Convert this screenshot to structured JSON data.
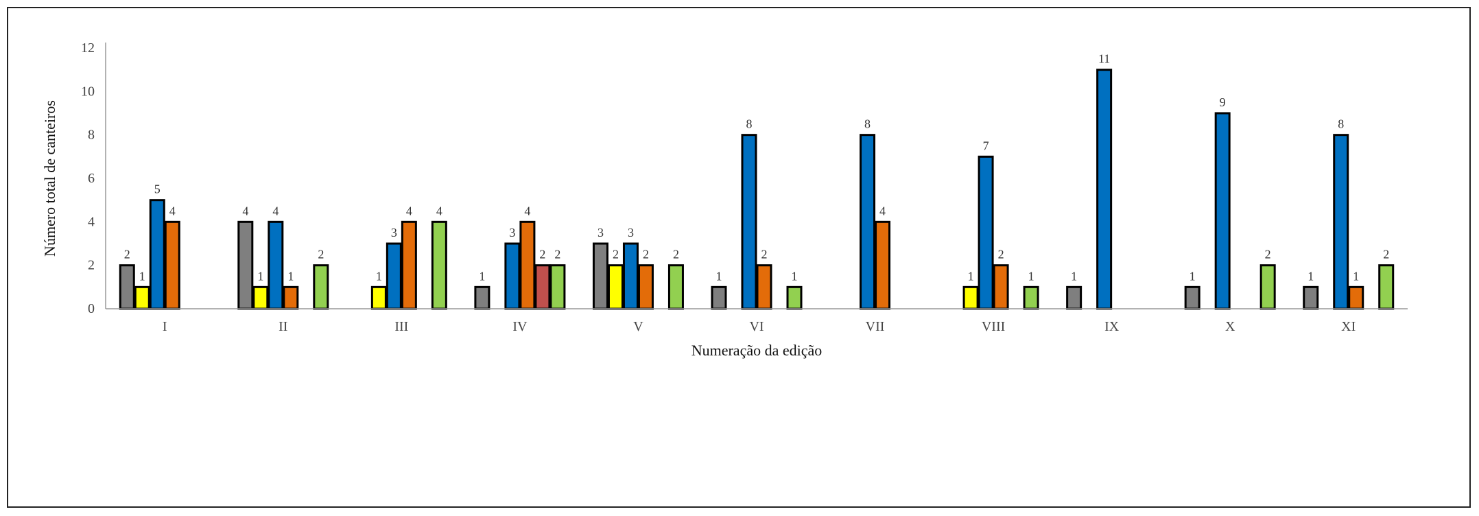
{
  "chart_data": {
    "type": "bar",
    "xlabel": "Numeração da edição",
    "ylabel": "Número total  de canteiros",
    "ylim": [
      0,
      12
    ],
    "yticks": [
      0,
      2,
      4,
      6,
      8,
      10,
      12
    ],
    "grid": false,
    "legend": "none",
    "categories": [
      "I",
      "II",
      "III",
      "IV",
      "V",
      "VI",
      "VII",
      "VIII",
      "IX",
      "X",
      "XI"
    ],
    "series": [
      {
        "color": "#7f7f7f",
        "values": [
          2,
          4,
          null,
          1,
          3,
          1,
          null,
          null,
          1,
          1,
          1
        ]
      },
      {
        "color": "#ffff00",
        "values": [
          1,
          1,
          1,
          null,
          2,
          null,
          null,
          1,
          null,
          null,
          null
        ]
      },
      {
        "color": "#0070c0",
        "values": [
          5,
          4,
          3,
          3,
          3,
          8,
          8,
          7,
          11,
          9,
          8
        ]
      },
      {
        "color": "#e36c09",
        "values": [
          4,
          1,
          4,
          4,
          2,
          2,
          4,
          2,
          null,
          null,
          1
        ]
      },
      {
        "color": "#c0504d",
        "values": [
          null,
          null,
          null,
          2,
          null,
          null,
          null,
          null,
          null,
          null,
          null
        ]
      },
      {
        "color": "#92d050",
        "values": [
          null,
          2,
          4,
          2,
          2,
          1,
          null,
          1,
          null,
          2,
          2
        ]
      }
    ]
  }
}
